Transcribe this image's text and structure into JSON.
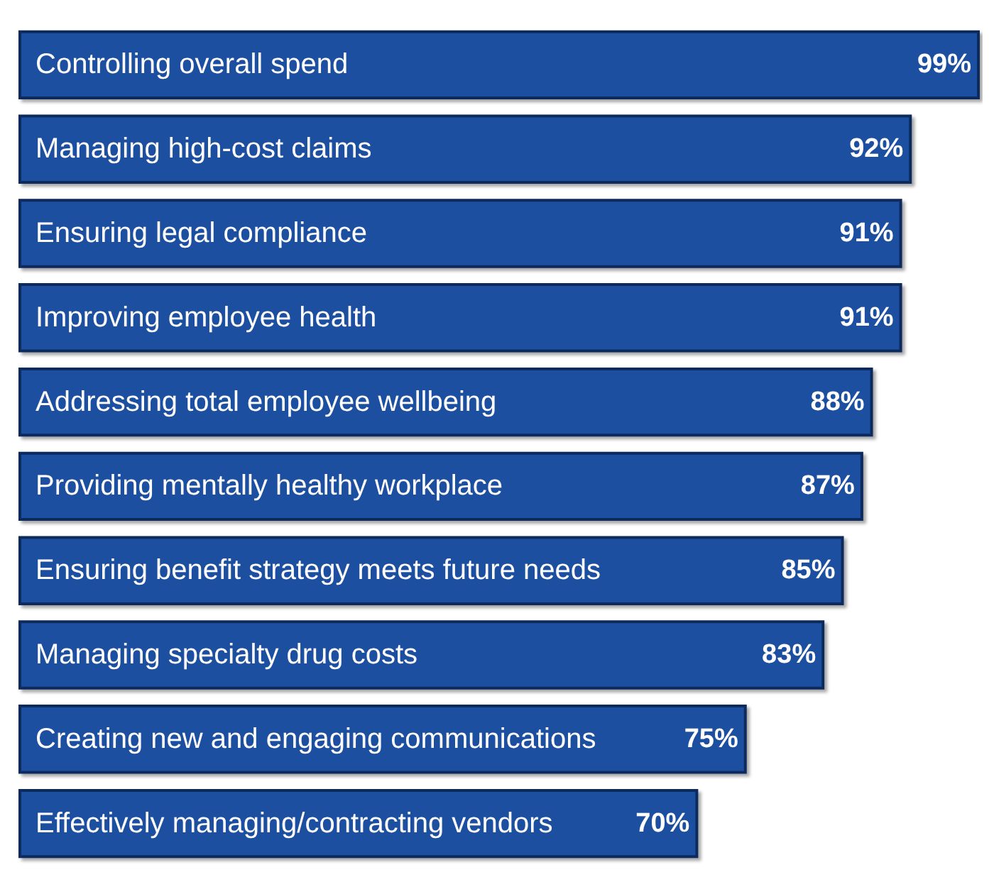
{
  "chart_data": {
    "type": "bar",
    "orientation": "horizontal",
    "color": "#1f4f9f",
    "categories": [
      "Controlling overall spend",
      "Managing high-cost claims",
      "Ensuring legal compliance",
      "Improving employee health",
      "Addressing total employee wellbeing",
      "Providing mentally healthy workplace",
      "Ensuring benefit strategy meets future needs",
      "Managing specialty drug costs",
      "Creating new and engaging communications",
      "Effectively managing/contracting vendors"
    ],
    "values": [
      99,
      92,
      91,
      91,
      88,
      87,
      85,
      83,
      75,
      70
    ],
    "value_labels": [
      "99%",
      "92%",
      "91%",
      "91%",
      "88%",
      "87%",
      "85%",
      "83%",
      "75%",
      "70%"
    ]
  }
}
